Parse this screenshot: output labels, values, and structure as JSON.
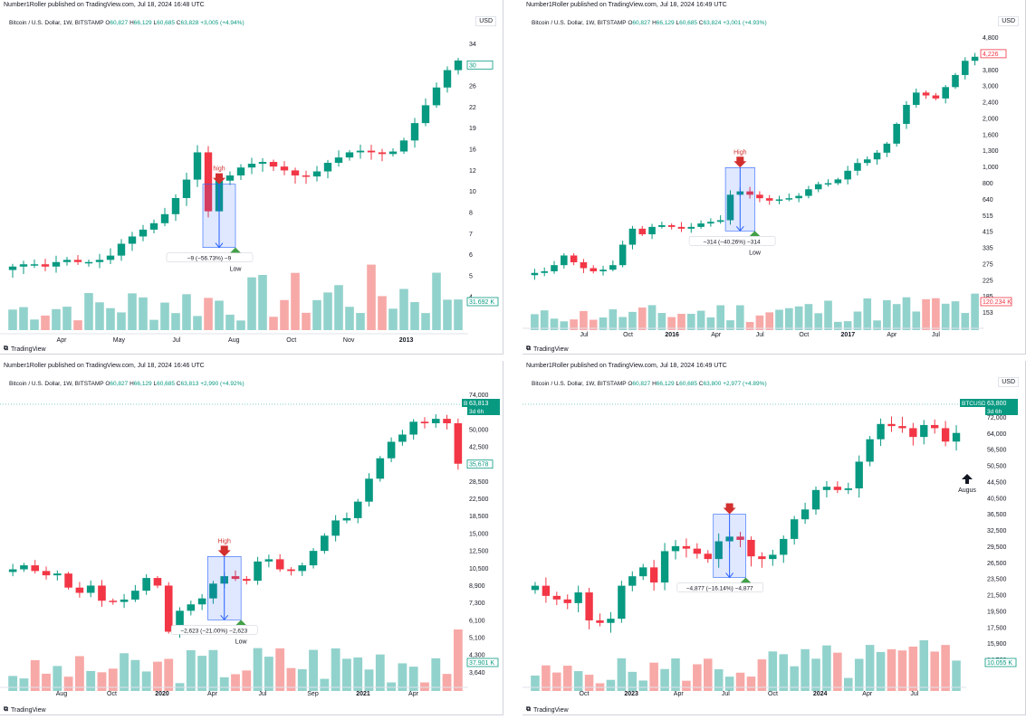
{
  "charts": [
    {
      "publisher": "Number1Roller published on TradingView.com, Jul 18, 2024 16:48 UTC",
      "symbol": "Bitcoin / U.S. Dollar, 1W, BITSTAMP",
      "ohlc": {
        "o": "60,827",
        "h": "66,129",
        "l": "60,685",
        "c": "63,828",
        "chg": "+3,005 (+4.94%)"
      },
      "currency": "USD",
      "brand": "TradingView",
      "price_label": "30",
      "volume_label": "31.692 K",
      "y_ticks": [
        "34",
        "30",
        "26",
        "22",
        "19",
        "16",
        "12",
        "10",
        "8",
        "7",
        "6",
        "5",
        "4"
      ],
      "x_ticks": [
        "Apr",
        "May",
        "Jul",
        "Aug",
        "Oct",
        "Nov",
        "2013"
      ],
      "ann_high": "high",
      "ann_low": "Low",
      "ann_measure": "−9 (−56.73%) −9",
      "color_up": "#089981",
      "color_down": "#f23645"
    },
    {
      "publisher": "Number1Roller published on TradingView.com, Jul 18, 2024 16:49 UTC",
      "symbol": "Bitcoin / U.S. Dollar, 1W, BITSTAMP",
      "ohlc": {
        "o": "60,827",
        "h": "66,129",
        "l": "60,685",
        "c": "63,824",
        "chg": "+3,001 (+4.93%)"
      },
      "currency": "USD",
      "brand": "TradingView",
      "price_label": "4,226",
      "volume_label": "120.234 K",
      "y_ticks": [
        "4,800",
        "4,226",
        "3,800",
        "3,000",
        "2,400",
        "2,000",
        "1,600",
        "1,300",
        "1,000",
        "800",
        "640",
        "515",
        "415",
        "335",
        "275",
        "225",
        "185",
        "153"
      ],
      "x_ticks": [
        "Jul",
        "Oct",
        "2016",
        "Apr",
        "Jul",
        "Oct",
        "2017",
        "Apr",
        "Jul"
      ],
      "ann_high": "High",
      "ann_low": "Low",
      "ann_measure": "−314 (−40.26%) −314",
      "color_up": "#089981",
      "color_down": "#f23645"
    },
    {
      "publisher": "Number1Roller published on TradingView.com, Jul 18, 2024 16:46 UTC",
      "symbol": "Bitcoin / U.S. Dollar, 1W, BITSTAMP",
      "ohlc": {
        "o": "60,827",
        "h": "66,129",
        "l": "60,685",
        "c": "63,813",
        "chg": "+2,990 (+4.92%)"
      },
      "currency": "USD",
      "brand": "TradingView",
      "price_label": "35,678",
      "ticker_tag": "BTCUSD",
      "ticker_price": "63,813",
      "ticker_time": "3d 6h",
      "volume_label": "37.901 K",
      "y_ticks": [
        "74,000",
        "60,000",
        "50,000",
        "42,500",
        "35,678",
        "28,500",
        "22,500",
        "18,500",
        "15,000",
        "12,500",
        "10,500",
        "8,900",
        "7,300",
        "6,100",
        "5,100",
        "4,300",
        "3,640"
      ],
      "x_ticks": [
        "Aug",
        "Oct",
        "2020",
        "Apr",
        "Jul",
        "Sep",
        "2021",
        "Apr"
      ],
      "ann_high": "High",
      "ann_low": "Low",
      "ann_measure": "−2,623 (−21.00%) −2,623",
      "color_up": "#089981",
      "color_down": "#f23645"
    },
    {
      "publisher": "Number1Roller published on TradingView.com, Jul 18, 2024 16:49 UTC",
      "symbol": "Bitcoin / U.S. Dollar, 1W, BITSTAMP",
      "ohlc": {
        "o": "60,827",
        "h": "66,129",
        "l": "60,685",
        "c": "63,800",
        "chg": "+2,977 (+4.89%)"
      },
      "currency": "USD",
      "brand": "TradingView",
      "ticker_tag": "BTCUSD",
      "ticker_price": "63,800",
      "ticker_time": "3d 6h",
      "volume_label": "10.055 K",
      "y_ticks": [
        "80,000",
        "72,000",
        "64,000",
        "56,500",
        "50,500",
        "44,500",
        "40,500",
        "36,500",
        "32,500",
        "29,500",
        "26,500",
        "23,500",
        "21,500",
        "19,500",
        "17,500",
        "15,900",
        "14,500"
      ],
      "x_ticks": [
        "Oct",
        "2023",
        "Apr",
        "Jul",
        "Oct",
        "2024",
        "Apr",
        "Jul"
      ],
      "ann_low": "",
      "ann_measure": "−4,877 (−16.14%) −4,877",
      "ann_future": "Augus",
      "color_up": "#089981",
      "color_down": "#f23645"
    }
  ],
  "chart_data": [
    {
      "type": "candlestick",
      "period": "2012 – early 2013 (weekly)",
      "scale": "log",
      "close_path": [
        4.9,
        5.0,
        5.0,
        4.9,
        5.1,
        5.2,
        5.1,
        5.1,
        5.2,
        5.4,
        6.0,
        6.4,
        6.8,
        7.2,
        7.8,
        9.0,
        10.6,
        13.5,
        8.0,
        10.5,
        11.0,
        11.8,
        12.2,
        12.4,
        11.9,
        11.5,
        11.0,
        10.9,
        11.4,
        12.3,
        12.9,
        13.5,
        13.7,
        13.5,
        13.3,
        13.6,
        15.0,
        17.5,
        20.5,
        24.0,
        28.0,
        30.5
      ],
      "measure": {
        "high": 13.5,
        "low": 7.0,
        "change": -9,
        "change_pct": -56.73
      }
    },
    {
      "type": "candlestick",
      "period": "mid 2015 – Aug 2017 (weekly)",
      "scale": "log",
      "close_path": [
        225,
        230,
        250,
        285,
        260,
        240,
        230,
        235,
        250,
        330,
        410,
        380,
        420,
        430,
        420,
        410,
        420,
        440,
        450,
        460,
        650,
        680,
        650,
        620,
        600,
        610,
        620,
        640,
        700,
        750,
        760,
        800,
        900,
        1000,
        1050,
        1150,
        1300,
        1700,
        2200,
        2600,
        2500,
        2400,
        2800,
        3300,
        4000,
        4226
      ],
      "measure": {
        "change": -314,
        "change_pct": -40.26
      }
    },
    {
      "type": "candlestick",
      "period": "mid 2019 – mid 2021 (weekly)",
      "scale": "log",
      "close_path": [
        10500,
        11000,
        10300,
        9800,
        10000,
        8500,
        8000,
        8700,
        7300,
        7200,
        7400,
        8200,
        9500,
        8700,
        5100,
        6500,
        7000,
        7500,
        8900,
        9700,
        9400,
        9200,
        11500,
        11800,
        10500,
        10300,
        11000,
        13000,
        15500,
        18500,
        19000,
        23000,
        30000,
        38000,
        46000,
        50000,
        58000,
        57000,
        60000,
        57000,
        35678
      ],
      "measure": {
        "change": -2623,
        "change_pct": -21.0
      },
      "current": 63813
    },
    {
      "type": "candlestick",
      "period": "mid 2022 – Jul 2024 (weekly)",
      "scale": "log",
      "close_path": [
        21500,
        20000,
        19500,
        19000,
        20500,
        16800,
        16500,
        17000,
        21500,
        23000,
        24500,
        22000,
        27500,
        28500,
        28000,
        27000,
        26000,
        29500,
        30500,
        29800,
        26500,
        26000,
        26800,
        30000,
        34500,
        37000,
        42500,
        43500,
        42500,
        43000,
        52000,
        61000,
        68000,
        67000,
        66000,
        62000,
        67500,
        66000,
        60000,
        63800
      ],
      "measure": {
        "change": -4877,
        "change_pct": -16.14
      },
      "current": 63800
    }
  ]
}
